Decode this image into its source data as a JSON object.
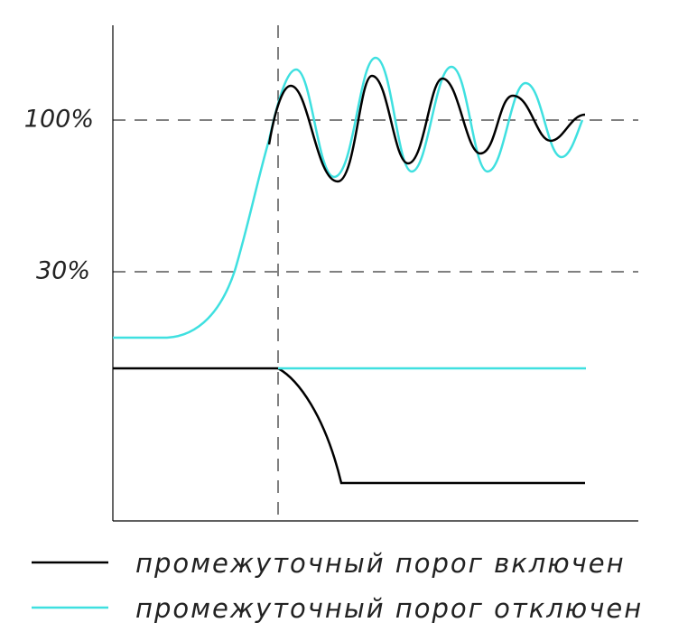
{
  "levels": {
    "high": "100%",
    "low": "30%"
  },
  "legend": {
    "on": "промежуточный порог включен",
    "off": "промежуточный порог отключен"
  }
}
